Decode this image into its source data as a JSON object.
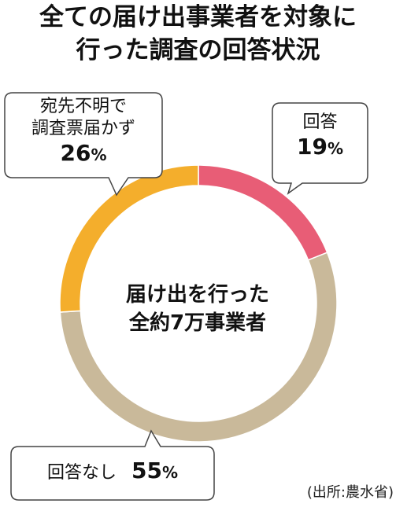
{
  "title_line1": "全ての届け出事業者を対象に",
  "title_line2": "行った調査の回答状況",
  "center_line1": "届け出を行った",
  "center_line2": "全約7万事業者",
  "callouts": {
    "unknown": {
      "line1": "宛先不明で",
      "line2": "調査票届かず",
      "value": "26",
      "unit": "%"
    },
    "answered": {
      "line1": "回答",
      "value": "19",
      "unit": "%"
    },
    "no_answer": {
      "line1": "回答なし",
      "value": "55",
      "unit": "%"
    }
  },
  "source": "(出所:農水省)",
  "colors": {
    "answered": "#e85d76",
    "no_answer": "#c9b99a",
    "unknown": "#f4ae2c",
    "callout_border": "#444444"
  },
  "chart_data": {
    "type": "pie",
    "donut": true,
    "categories": [
      "回答",
      "回答なし",
      "宛先不明で調査票届かず"
    ],
    "values": [
      19,
      55,
      26
    ],
    "unit": "%",
    "start": "12 o'clock",
    "direction": "clockwise"
  }
}
